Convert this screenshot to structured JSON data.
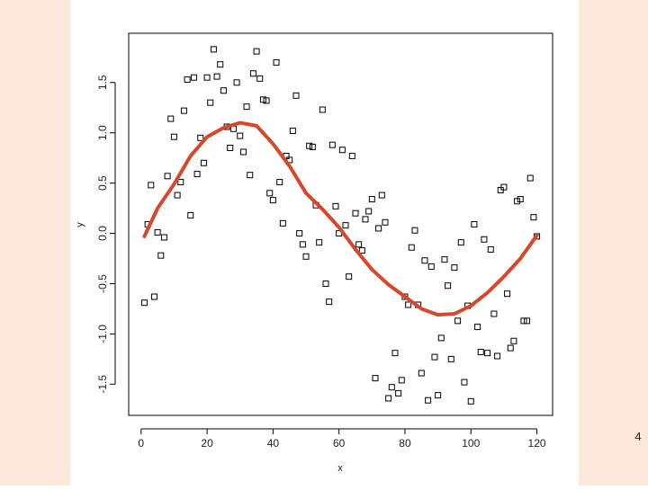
{
  "page_number": "4",
  "chart_data": {
    "type": "scatter",
    "xlabel": "x",
    "ylabel": "y",
    "xlim": [
      -3.76,
      124.76
    ],
    "ylim": [
      -1.81,
      1.99
    ],
    "xticks": [
      0,
      20,
      40,
      60,
      80,
      100,
      120
    ],
    "yticks": [
      -1.5,
      {
        "value": -1.0,
        "label": "-1.0"
      },
      -0.5,
      {
        "value": 0,
        "label": "0.0"
      },
      0.5,
      {
        "value": 1.0,
        "label": "1.0"
      },
      1.5
    ],
    "series": [
      {
        "color": "#000000",
        "marker": "square",
        "x": [
          1,
          2,
          3,
          4,
          5,
          6,
          7,
          8,
          9,
          10,
          11,
          12,
          13,
          14,
          15,
          16,
          17,
          18,
          19,
          20,
          21,
          22,
          23,
          24,
          25,
          26,
          27,
          28,
          29,
          30,
          31,
          32,
          33,
          34,
          35,
          36,
          37,
          38,
          39,
          40,
          41,
          42,
          43,
          44,
          45,
          46,
          47,
          48,
          49,
          50,
          51,
          52,
          53,
          54,
          55,
          56,
          57,
          58,
          59,
          60,
          61,
          62,
          63,
          64,
          65,
          66,
          67,
          68,
          69,
          70,
          71,
          72,
          73,
          74,
          75,
          76,
          77,
          78,
          79,
          80,
          81,
          82,
          83,
          84,
          85,
          86,
          87,
          88,
          89,
          90,
          91,
          92,
          93,
          94,
          95,
          96,
          97,
          98,
          99,
          100,
          101,
          102,
          103,
          104,
          105,
          106,
          107,
          108,
          109,
          110,
          111,
          112,
          113,
          114,
          115,
          116,
          117,
          118,
          119,
          120
        ],
        "values": [
          -0.69,
          0.09,
          0.48,
          -0.63,
          0.01,
          -0.22,
          -0.04,
          0.57,
          1.14,
          0.96,
          0.38,
          0.51,
          1.22,
          1.53,
          0.18,
          1.55,
          0.59,
          0.95,
          0.7,
          1.55,
          1.3,
          1.83,
          1.56,
          1.68,
          1.42,
          1.06,
          0.85,
          1.04,
          1.5,
          0.97,
          0.81,
          1.26,
          0.58,
          1.59,
          1.81,
          1.54,
          1.33,
          1.32,
          0.4,
          0.33,
          1.7,
          0.51,
          0.1,
          0.77,
          0.73,
          1.02,
          1.37,
          0,
          -0.11,
          -0.23,
          0.87,
          0.86,
          0.28,
          -0.09,
          1.23,
          -0.5,
          -0.68,
          0.88,
          0.27,
          0,
          0.83,
          0.08,
          -0.43,
          0.77,
          0.2,
          -0.11,
          -0.17,
          0.14,
          0.22,
          0.34,
          -1.44,
          0.05,
          0.38,
          0.11,
          -1.64,
          -1.53,
          -1.19,
          -1.59,
          -1.46,
          -0.63,
          -0.71,
          -0.14,
          0.03,
          -0.71,
          -1.39,
          -0.27,
          -1.66,
          -0.33,
          -1.23,
          -1.61,
          -1.04,
          -0.26,
          -0.52,
          -1.25,
          -0.34,
          -0.87,
          -0.09,
          -1.48,
          -0.72,
          -1.67,
          0.09,
          -0.93,
          -1.18,
          -0.06,
          -1.19,
          -0.16,
          -0.8,
          -1.22,
          0.43,
          0.46,
          -0.6,
          -1.14,
          -1.07,
          0.32,
          0.34,
          -0.87,
          -0.87,
          0.55,
          0.16,
          -0.03
        ]
      },
      {
        "color": "#d9472b",
        "marker": "line",
        "x": [
          1,
          5,
          10,
          15,
          20,
          25,
          30,
          35,
          40,
          45,
          50,
          55,
          60,
          65,
          70,
          75,
          80,
          85,
          90,
          95,
          100,
          105,
          110,
          115,
          120
        ],
        "values": [
          -0.03,
          0.25,
          0.49,
          0.77,
          0.96,
          1.05,
          1.1,
          1.07,
          0.89,
          0.67,
          0.4,
          0.24,
          0.06,
          -0.16,
          -0.36,
          -0.51,
          -0.63,
          -0.75,
          -0.81,
          -0.8,
          -0.72,
          -0.59,
          -0.43,
          -0.25,
          -0.02
        ]
      }
    ]
  }
}
